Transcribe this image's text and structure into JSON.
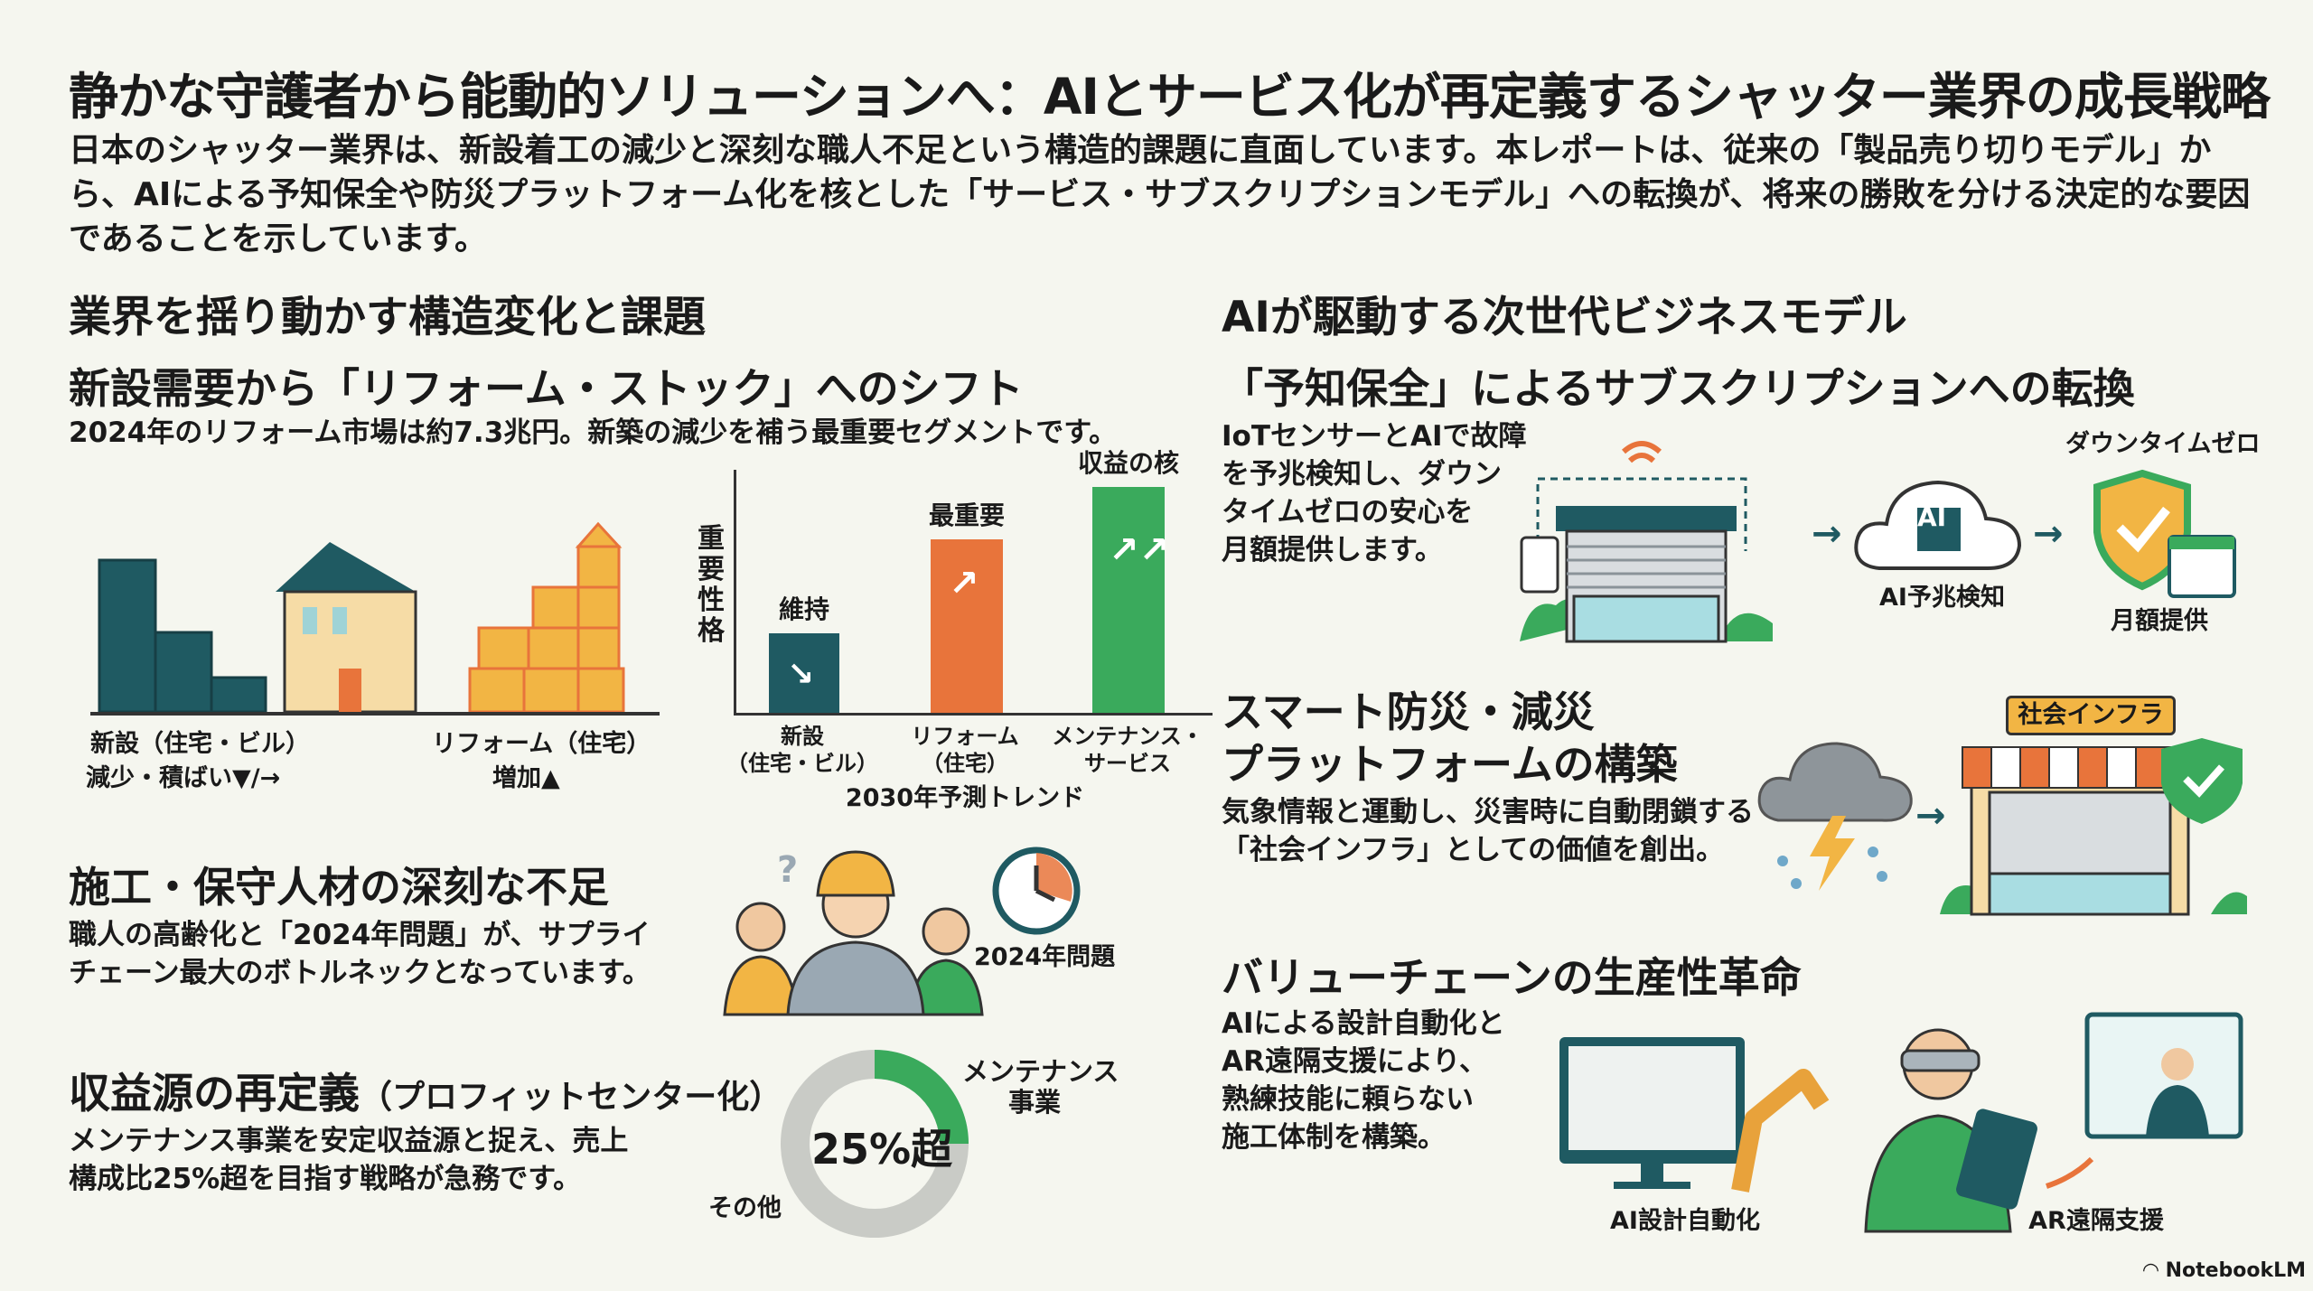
{
  "title": "静かな守護者から能動的ソリューションへ：AIとサービス化が再定義するシャッター業界の成長戦略",
  "intro": "日本のシャッター業界は、新設着工の減少と深刻な職人不足という構造的課題に直面しています。本レポートは、従来の「製品売り切りモデル」から、AIによる予知保全や防災プラットフォーム化を核とした「サービス・サブスクリプションモデル」への転換が、将来の勝敗を分ける決定的な要因であることを示しています。",
  "colors": {
    "teal": "#1f5a62",
    "orange": "#e8743b",
    "green": "#3aaa5c",
    "yellow": "#f2b544",
    "background": "#f5f6ef"
  },
  "left": {
    "heading": "業界を揺り動かす構造変化と課題",
    "shift": {
      "heading": "新設需要から「リフォーム・ストック」へのシフト",
      "caption": "2024年のリフォーム市場は約7.3兆円。新築の減少を補う最重要セグメントです。",
      "new_label": "新設（住宅・ビル）",
      "new_trend": "減少・積ばい▼/→",
      "reform_label": "リフォーム（住宅）",
      "reform_trend": "増加▲",
      "chart": {
        "ylabel": "重要性格",
        "xlabel": "2030年予測トレンド",
        "bars": [
          {
            "category": "新設\n（住宅・ビル）",
            "tag": "維持",
            "color": "#1f5a62",
            "trend": "down"
          },
          {
            "category": "リフォーム\n（住宅）",
            "tag": "最重要",
            "color": "#e8743b",
            "trend": "up"
          },
          {
            "category": "メンテナンス・\nサービス",
            "tag": "収益の核",
            "color": "#3aaa5c",
            "trend": "strong-up"
          }
        ]
      }
    },
    "labor": {
      "heading": "施工・保守人材の深刻な不足",
      "text": [
        "職人の高齢化と「2024年問題」が、サプライ",
        "チェーン最大のボトルネックとなっています。"
      ],
      "clock_label": "2024年問題",
      "question_mark": "?"
    },
    "profit": {
      "heading": "収益源の再定義",
      "heading_sub": "（プロフィットセンター化）",
      "text": [
        "メンテナンス事業を安定収益源と捉え、売上",
        "構成比25%超を目指す戦略が急務です。"
      ],
      "donut_center": "25%超",
      "maintenance_share_percent": 25,
      "maintenance_label": [
        "メンテナンス",
        "事業"
      ],
      "other_label": "その他"
    }
  },
  "right": {
    "heading": "AIが駆動する次世代ビジネスモデル",
    "predictive": {
      "heading": "「予知保全」によるサブスクリプションへの転換",
      "text": [
        "IoTセンサーとAIで故障",
        "を予兆検知し、ダウン",
        "タイムゼロの安心を",
        "月額提供します。"
      ],
      "ai_chip": "AI",
      "ai_label": "AI予兆検知",
      "downtime_label": "ダウンタイムゼロ",
      "monthly_label": "月額提供"
    },
    "disaster": {
      "heading": [
        "スマート防災・減災",
        "プラットフォームの構築"
      ],
      "text": [
        "気象情報と運動し、災害時に自動閉鎖する",
        "「社会インフラ」としての価値を創出。"
      ],
      "badge": "社会インフラ"
    },
    "value_chain": {
      "heading": "バリューチェーンの生産性革命",
      "text": [
        "AIによる設計自動化と",
        "AR遠隔支援により、",
        "熟練技能に頼らない",
        "施工体制を構築。"
      ],
      "design_label": "AI設計自動化",
      "ar_label": "AR遠隔支援"
    }
  },
  "footer": {
    "brand": "NotebookLM"
  }
}
